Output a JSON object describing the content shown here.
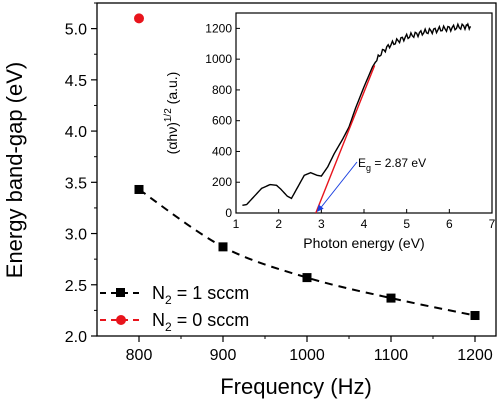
{
  "chart_data": [
    {
      "type": "line",
      "xlabel": "Frequency (Hz)",
      "ylabel": "Energy band-gap (eV)",
      "xlim": [
        750,
        1225
      ],
      "ylim": [
        2.0,
        5.25
      ],
      "xticks": [
        "800",
        "900",
        "1000",
        "1100",
        "1200"
      ],
      "yticks": [
        "2.0",
        "2.5",
        "3.0",
        "3.5",
        "4.0",
        "4.5",
        "5.0"
      ],
      "grid": false,
      "legend_position": "bottom-left",
      "series": [
        {
          "name_main": "N",
          "name_sub": "2",
          "name_tail": " = 1 sccm",
          "color": "#000000",
          "marker": "square",
          "line": "dashed",
          "points": [
            [
              800,
              3.43
            ],
            [
              900,
              2.87
            ],
            [
              1000,
              2.57
            ],
            [
              1100,
              2.37
            ],
            [
              1200,
              2.2
            ]
          ]
        },
        {
          "name_main": "N",
          "name_sub": "2",
          "name_tail": " = 0 sccm",
          "color": "#e8141c",
          "marker": "circle",
          "line": "none",
          "points": [
            [
              800,
              5.1
            ]
          ]
        }
      ]
    },
    {
      "type": "line",
      "role": "inset",
      "xlabel": "Photon energy (eV)",
      "ylabel_pre": "(αhν)",
      "ylabel_sup": "1/2",
      "ylabel_post": " (a.u.)",
      "xlim": [
        1,
        7
      ],
      "ylim": [
        0,
        1300
      ],
      "xticks": [
        "1",
        "2",
        "3",
        "4",
        "5",
        "6",
        "7"
      ],
      "yticks": [
        "0",
        "200",
        "400",
        "600",
        "800",
        "1000",
        "1200"
      ],
      "curve": [
        [
          1.15,
          50
        ],
        [
          1.25,
          55
        ],
        [
          1.4,
          100
        ],
        [
          1.6,
          160
        ],
        [
          1.8,
          185
        ],
        [
          1.95,
          180
        ],
        [
          2.05,
          155
        ],
        [
          2.2,
          110
        ],
        [
          2.3,
          95
        ],
        [
          2.45,
          170
        ],
        [
          2.6,
          245
        ],
        [
          2.75,
          262
        ],
        [
          2.9,
          245
        ],
        [
          3.0,
          240
        ],
        [
          3.15,
          300
        ],
        [
          3.3,
          385
        ],
        [
          3.5,
          480
        ],
        [
          3.65,
          560
        ],
        [
          3.8,
          680
        ],
        [
          4.0,
          820
        ],
        [
          4.2,
          950
        ],
        [
          4.4,
          1040
        ],
        [
          4.6,
          1090
        ],
        [
          4.8,
          1120
        ],
        [
          5.0,
          1145
        ],
        [
          5.2,
          1160
        ],
        [
          5.4,
          1175
        ],
        [
          5.6,
          1185
        ],
        [
          5.8,
          1195
        ],
        [
          6.0,
          1200
        ],
        [
          6.2,
          1208
        ],
        [
          6.4,
          1215
        ],
        [
          6.5,
          1212
        ]
      ],
      "curve_color": "#000000",
      "fit_line": {
        "x": [
          2.87,
          4.25
        ],
        "y": [
          0,
          960
        ],
        "color": "#e8141c"
      },
      "annotation": {
        "label_main": "E",
        "label_sub": "g",
        "label_tail": " = 2.87 eV",
        "x": 2.87,
        "arrow_color": "#1a3fe0"
      }
    }
  ]
}
